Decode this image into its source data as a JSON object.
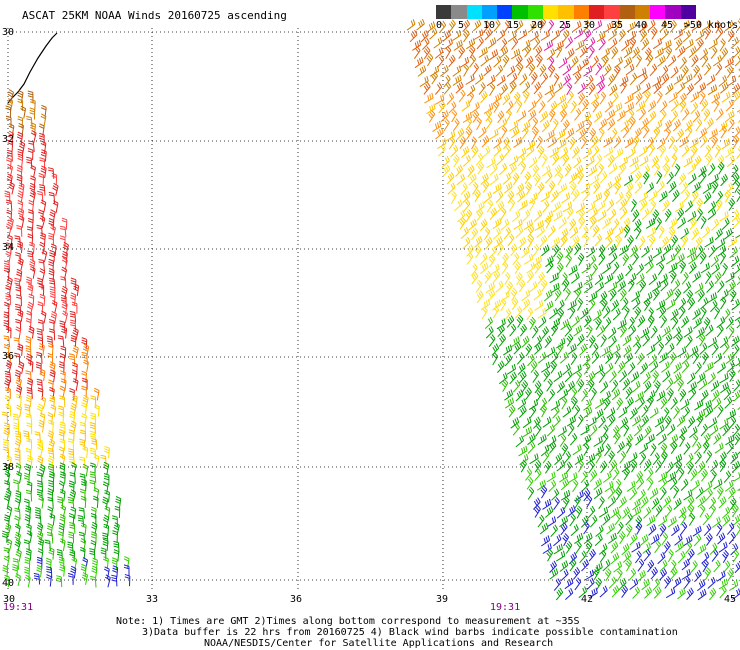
{
  "title": "ASCAT 25KM NOAA Winds 20160725 ascending",
  "legend": {
    "colors": [
      "#3a3a3a",
      "#8a8a8a",
      "#00e0ff",
      "#00a0ff",
      "#0040ff",
      "#00c000",
      "#30e000",
      "#ffe000",
      "#ffc000",
      "#ff8000",
      "#e02020",
      "#ff4040",
      "#b06010",
      "#d08000",
      "#ff00ff",
      "#a000c0",
      "#5000a0"
    ],
    "ticks": [
      "0",
      "5",
      "10",
      "15",
      "20",
      "25",
      "30",
      "35",
      "40",
      "45",
      ">50 knots"
    ]
  },
  "axes": {
    "lon_labels": [
      "30",
      "33",
      "36",
      "39",
      "42",
      "45"
    ],
    "lat_labels": [
      "30",
      "32",
      "34",
      "36",
      "38",
      "40"
    ]
  },
  "swath_times": [
    "19:31",
    "19:31"
  ],
  "notes": [
    "Note: 1) Times are GMT 2)Times along bottom correspond to measurement at ~35S",
    "3)Data buffer is 22 hrs from 20160725 4) Black wind barbs indicate possible contamination",
    "NOAA/NESDIS/Center for Satellite Applications and Research"
  ]
}
